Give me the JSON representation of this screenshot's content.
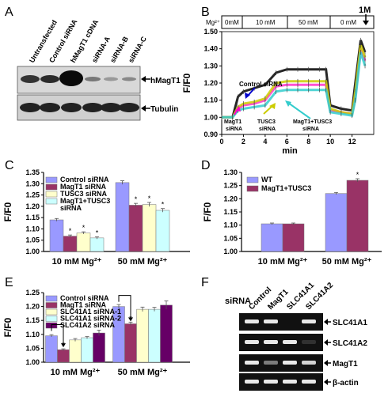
{
  "panels": {
    "A": {
      "letter": "A",
      "lanes": [
        "Untransfected",
        "Control siRNA",
        "hMagT1 cDNA",
        "siRNA-A",
        "siRNA-B",
        "siRNA-C"
      ],
      "labels": [
        "hMagT1",
        "Tubulin"
      ]
    },
    "B": {
      "letter": "B",
      "mg_label": "Mg²⁺",
      "conditions": [
        "0mM",
        "10 mM",
        "50 mM",
        "0 mM"
      ],
      "top_label": "1M",
      "ylabel": "F/F0",
      "xlabel": "min",
      "annotations": [
        "Control siRNA",
        "MagT1 siRNA",
        "TUSC3 siRNA",
        "MagT1+TUSC3 siRNA"
      ]
    },
    "C": {
      "letter": "C"
    },
    "D": {
      "letter": "D"
    },
    "E": {
      "letter": "E"
    },
    "F": {
      "letter": "F",
      "row_title": "siRNA",
      "lanes": [
        "Control",
        "MagT1",
        "SLC41A1",
        "SLC41A2"
      ],
      "bands": [
        "SLC41A1",
        "SLC41A2",
        "MagT1",
        "β-actin"
      ]
    }
  },
  "colors": {
    "blue": "#9999ff",
    "maroon": "#993366",
    "yellow": "#ffffcc",
    "cyan": "#ccffff",
    "purple": "#660066"
  },
  "chart_data": [
    {
      "id": "B",
      "type": "line",
      "ylabel": "F/F0",
      "xlabel": "min",
      "ylim": [
        0.9,
        1.5
      ],
      "xlim": [
        0,
        14
      ],
      "yticks": [
        "0.90",
        "1.00",
        "1.10",
        "1.20",
        "1.30",
        "1.40",
        "1.50"
      ],
      "xticks": [
        "0",
        "2",
        "4",
        "6",
        "8",
        "10",
        "12"
      ],
      "series": [
        {
          "name": "Control siRNA",
          "color": "#000000",
          "x": [
            0,
            1,
            1.5,
            2,
            3,
            4,
            5,
            6,
            7,
            8,
            9,
            9.6,
            10,
            11,
            12,
            12.3,
            12.8,
            13.2
          ],
          "y": [
            1.0,
            1.0,
            1.12,
            1.15,
            1.17,
            1.19,
            1.26,
            1.28,
            1.28,
            1.28,
            1.28,
            1.28,
            1.07,
            1.05,
            1.04,
            1.2,
            1.45,
            1.38
          ]
        },
        {
          "name": "MagT1 siRNA",
          "color": "#ff33cc",
          "x": [
            0,
            1,
            1.5,
            2,
            3,
            4,
            5,
            6,
            7,
            8,
            9,
            9.6,
            10,
            11,
            12,
            12.3,
            12.8,
            13.2
          ],
          "y": [
            1.0,
            1.0,
            1.05,
            1.07,
            1.08,
            1.1,
            1.18,
            1.19,
            1.19,
            1.19,
            1.19,
            1.19,
            1.04,
            1.03,
            1.02,
            1.12,
            1.4,
            1.33
          ]
        },
        {
          "name": "TUSC3 siRNA",
          "color": "#cccc00",
          "x": [
            0,
            1,
            1.5,
            2,
            3,
            4,
            5,
            6,
            7,
            8,
            9,
            9.6,
            10,
            11,
            12,
            12.3,
            12.8,
            13.2
          ],
          "y": [
            1.0,
            1.0,
            1.06,
            1.08,
            1.09,
            1.11,
            1.2,
            1.21,
            1.21,
            1.21,
            1.21,
            1.21,
            1.05,
            1.03,
            1.02,
            1.15,
            1.42,
            1.35
          ]
        },
        {
          "name": "MagT1+TUSC3 siRNA",
          "color": "#33cccc",
          "x": [
            0,
            1,
            1.5,
            2,
            3,
            4,
            5,
            6,
            7,
            8,
            9,
            9.6,
            10,
            11,
            12,
            12.3,
            12.8,
            13.2
          ],
          "y": [
            1.0,
            1.0,
            1.04,
            1.05,
            1.06,
            1.07,
            1.15,
            1.16,
            1.16,
            1.16,
            1.16,
            1.16,
            1.03,
            1.02,
            1.01,
            1.1,
            1.38,
            1.3
          ]
        }
      ]
    },
    {
      "id": "C",
      "type": "bar",
      "ylabel": "F/F0",
      "ylim": [
        1.0,
        1.35
      ],
      "yticks": [
        "1.00",
        "1.05",
        "1.10",
        "1.15",
        "1.20",
        "1.25",
        "1.30",
        "1.35"
      ],
      "categories": [
        "10 mM Mg²⁺",
        "50 mM Mg²⁺"
      ],
      "series": [
        {
          "name": "Control siRNA",
          "color": "#9999ff",
          "values": [
            1.14,
            1.305
          ],
          "errors": [
            0.006,
            0.008
          ],
          "star": [
            false,
            false
          ]
        },
        {
          "name": "MagT1 siRNA",
          "color": "#993366",
          "values": [
            1.068,
            1.205
          ],
          "errors": [
            0.005,
            0.008
          ],
          "star": [
            true,
            true
          ]
        },
        {
          "name": "TUSC3 siRNA",
          "color": "#ffffcc",
          "values": [
            1.082,
            1.208
          ],
          "errors": [
            0.005,
            0.009
          ],
          "star": [
            true,
            true
          ]
        },
        {
          "name": "MagT1+TUSC3 siRNA",
          "color": "#ccffff",
          "values": [
            1.06,
            1.182
          ],
          "errors": [
            0.005,
            0.008
          ],
          "star": [
            true,
            true
          ]
        }
      ]
    },
    {
      "id": "D",
      "type": "bar",
      "ylabel": "F/F0",
      "ylim": [
        1.0,
        1.3
      ],
      "yticks": [
        "1.00",
        "1.05",
        "1.10",
        "1.15",
        "1.20",
        "1.25",
        "1.30"
      ],
      "categories": [
        "10 mM Mg²⁺",
        "50 mM Mg²⁺"
      ],
      "series": [
        {
          "name": "WT",
          "color": "#9999ff",
          "values": [
            1.105,
            1.22
          ],
          "errors": [
            0.003,
            0.004
          ],
          "star": [
            false,
            false
          ]
        },
        {
          "name": "MagT1+TUSC3",
          "color": "#993366",
          "values": [
            1.105,
            1.27
          ],
          "errors": [
            0.003,
            0.006
          ],
          "star": [
            false,
            true
          ]
        }
      ]
    },
    {
      "id": "E",
      "type": "bar",
      "ylabel": "F/F0",
      "ylim": [
        1.0,
        1.25
      ],
      "yticks": [
        "1.00",
        "1.05",
        "1.10",
        "1.15",
        "1.20",
        "1.25"
      ],
      "categories": [
        "10 mM Mg²⁺",
        "50 mM Mg²⁺"
      ],
      "series": [
        {
          "name": "Control siRNA",
          "color": "#9999ff",
          "values": [
            1.095,
            1.2
          ],
          "errors": [
            0.004,
            0.007
          ],
          "star": [
            false,
            false
          ]
        },
        {
          "name": "MagT1 siRNA",
          "color": "#993366",
          "values": [
            1.045,
            1.138
          ],
          "errors": [
            0.003,
            0.006
          ],
          "star": [
            true,
            true
          ]
        },
        {
          "name": "SLC41A1 siRNA-1",
          "color": "#ffffcc",
          "values": [
            1.08,
            1.19
          ],
          "errors": [
            0.005,
            0.008
          ],
          "star": [
            false,
            false
          ]
        },
        {
          "name": "SLC41A1 siRNA-2",
          "color": "#ccffff",
          "values": [
            1.088,
            1.19
          ],
          "errors": [
            0.004,
            0.007
          ],
          "star": [
            false,
            false
          ]
        },
        {
          "name": "SLC41A2 siRNA",
          "color": "#660066",
          "values": [
            1.105,
            1.205
          ],
          "errors": [
            0.01,
            0.015
          ],
          "star": [
            false,
            false
          ]
        }
      ]
    }
  ]
}
